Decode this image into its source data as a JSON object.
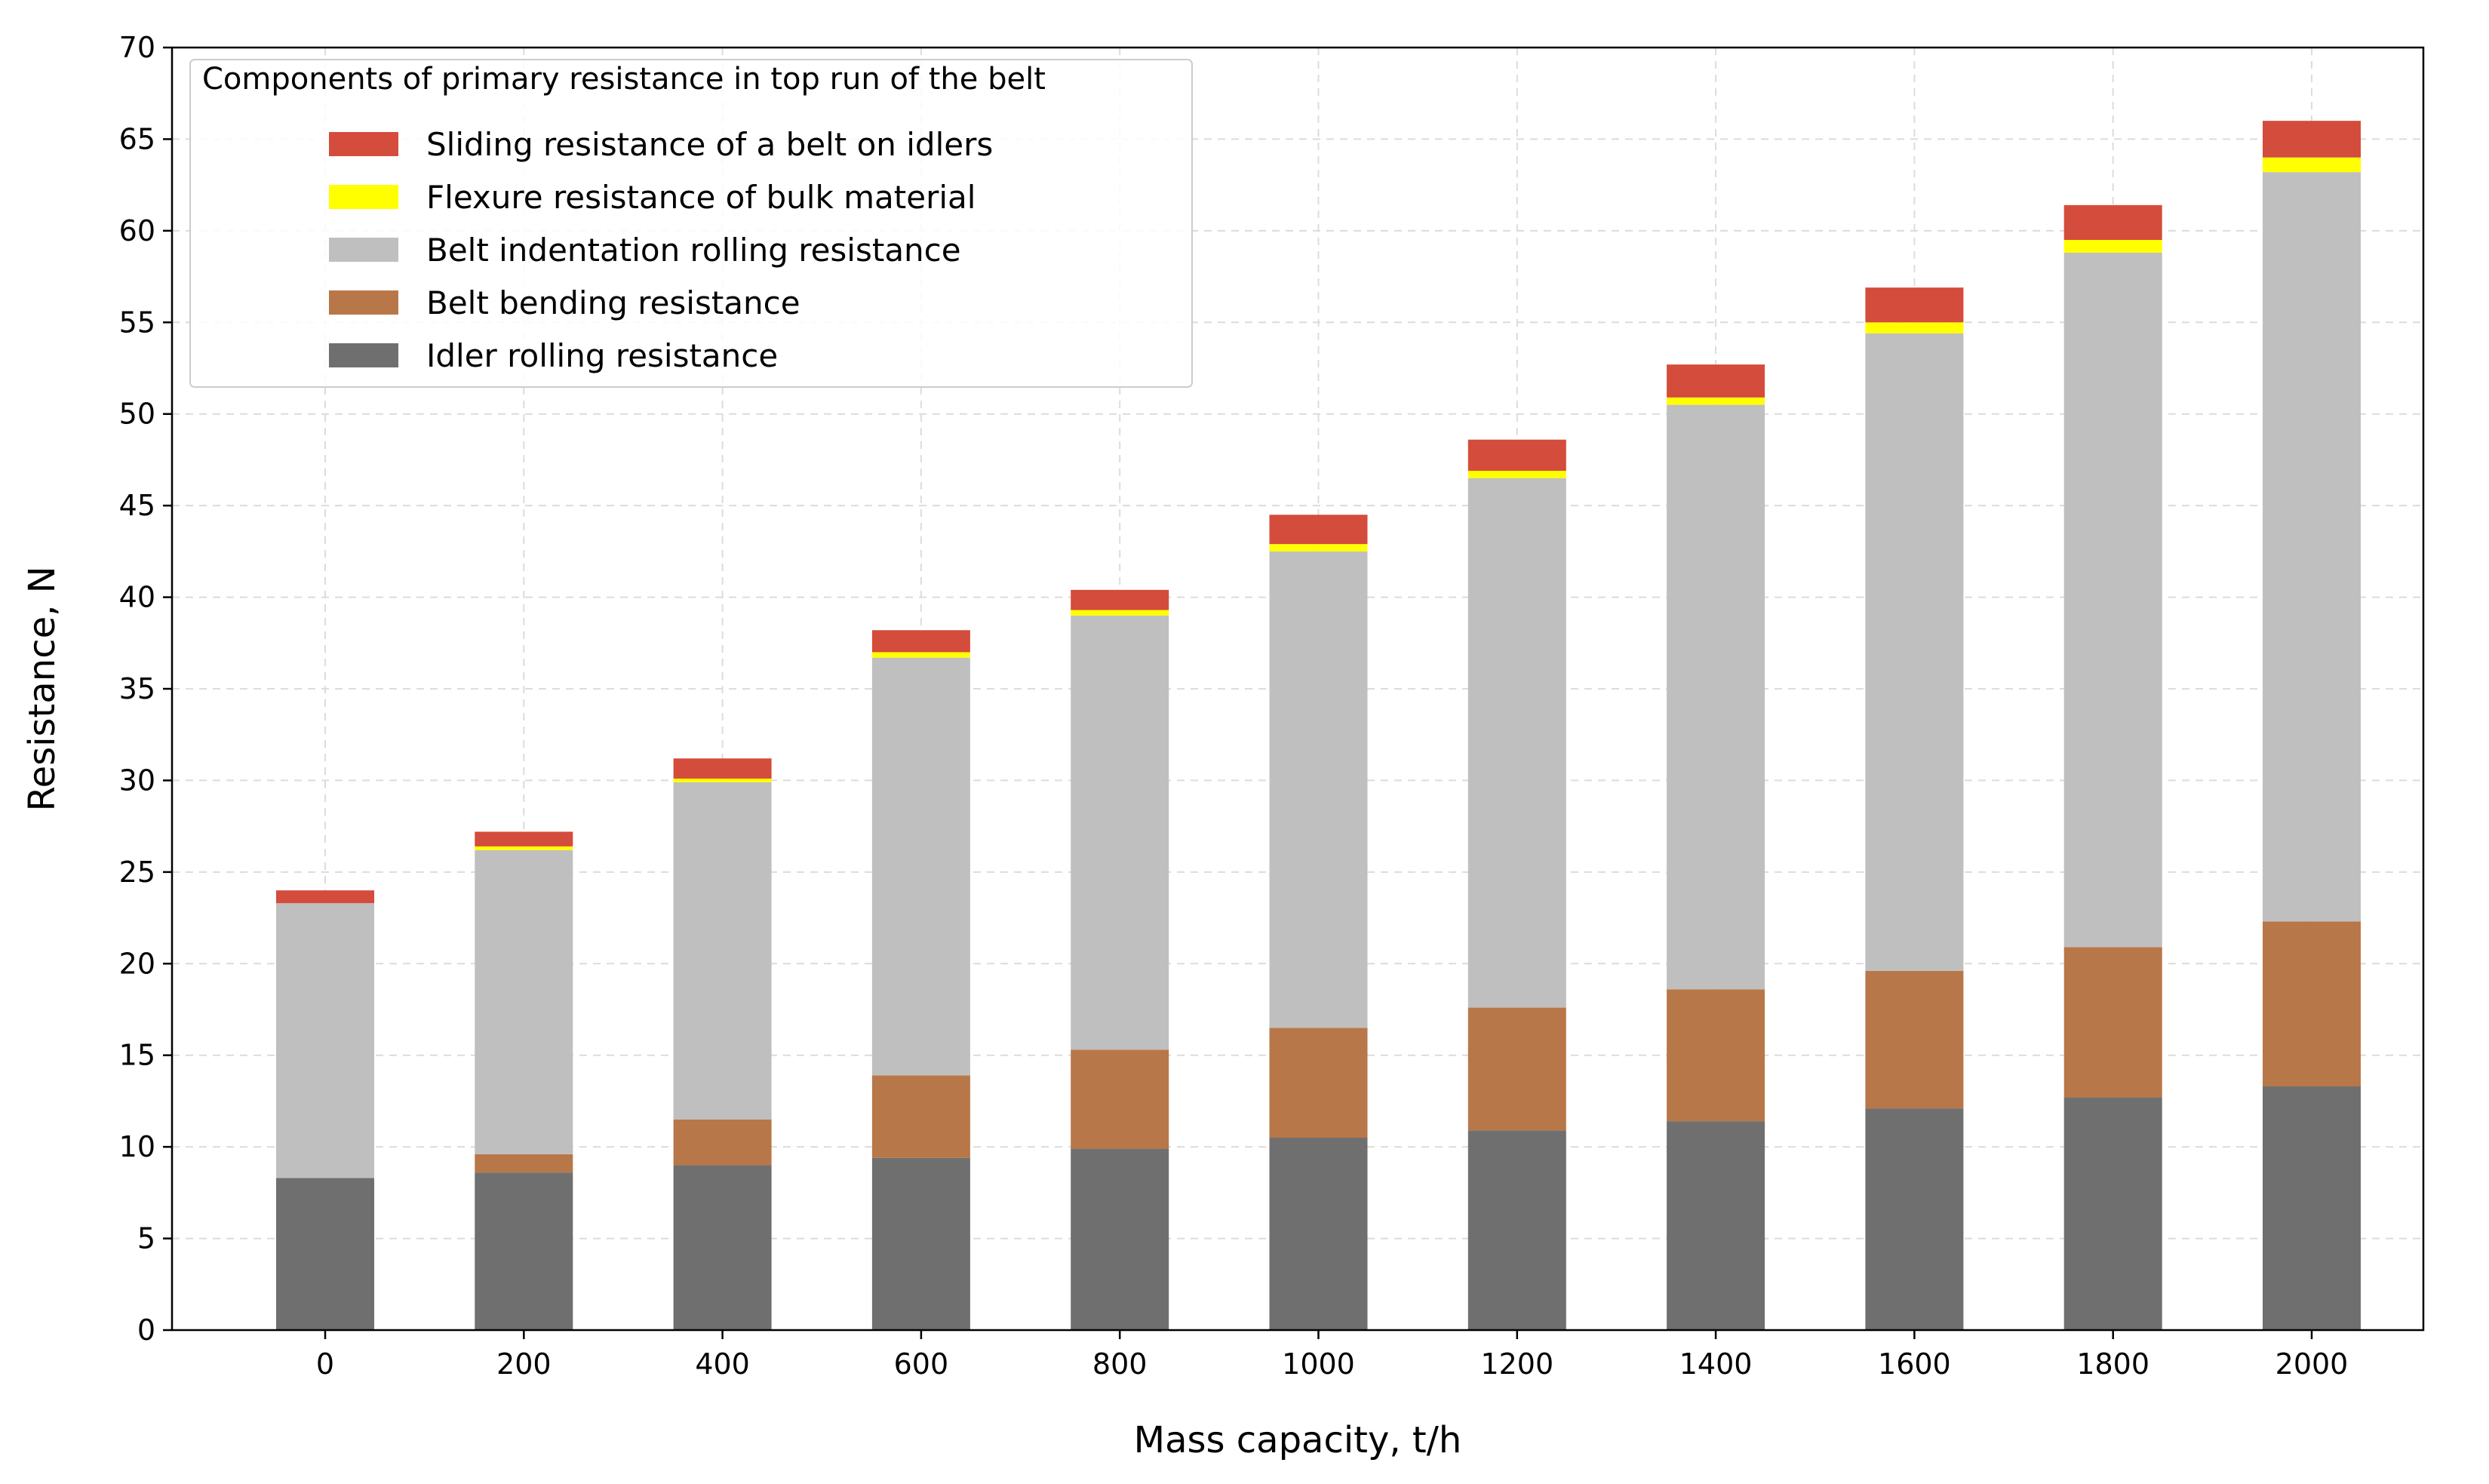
{
  "chart_data": {
    "type": "bar",
    "stacked": true,
    "title": "",
    "xlabel": "Mass capacity, t/h",
    "ylabel": "Resistance, N",
    "ylim": [
      0,
      70
    ],
    "yticks": [
      0,
      5,
      10,
      15,
      20,
      25,
      30,
      35,
      40,
      45,
      50,
      55,
      60,
      65,
      70
    ],
    "grid": true,
    "legend_title": "Components of primary resistance in top run of the belt",
    "legend_position": "upper-left",
    "categories": [
      "0",
      "200",
      "400",
      "600",
      "800",
      "1000",
      "1200",
      "1400",
      "1600",
      "1800",
      "2000"
    ],
    "series": [
      {
        "name": "Idler rolling resistance",
        "color": "#6f6f6f",
        "values": [
          8.3,
          8.6,
          9.0,
          9.4,
          9.9,
          10.5,
          10.9,
          11.4,
          12.1,
          12.7,
          13.3
        ]
      },
      {
        "name": "Belt bending resistance",
        "color": "#b87748",
        "values": [
          0.0,
          1.0,
          2.5,
          4.5,
          5.4,
          6.0,
          6.7,
          7.2,
          7.5,
          8.2,
          9.0
        ]
      },
      {
        "name": "Belt indentation rolling resistance",
        "color": "#bfbfbf",
        "values": [
          15.0,
          16.6,
          18.4,
          22.8,
          23.7,
          26.0,
          28.9,
          31.9,
          34.8,
          37.9,
          40.9
        ]
      },
      {
        "name": "Flexure resistance of bulk material",
        "color": "#ffff00",
        "values": [
          0.0,
          0.2,
          0.2,
          0.3,
          0.3,
          0.4,
          0.4,
          0.4,
          0.6,
          0.7,
          0.8
        ]
      },
      {
        "name": "Sliding resistance of a belt on idlers",
        "color": "#d44c3b",
        "values": [
          0.7,
          0.8,
          1.1,
          1.2,
          1.1,
          1.6,
          1.7,
          1.8,
          1.9,
          1.9,
          2.0
        ]
      }
    ],
    "legend_order": [
      "Sliding resistance of a belt on idlers",
      "Flexure resistance of bulk material",
      "Belt indentation rolling resistance",
      "Belt bending resistance",
      "Idler rolling resistance"
    ]
  }
}
